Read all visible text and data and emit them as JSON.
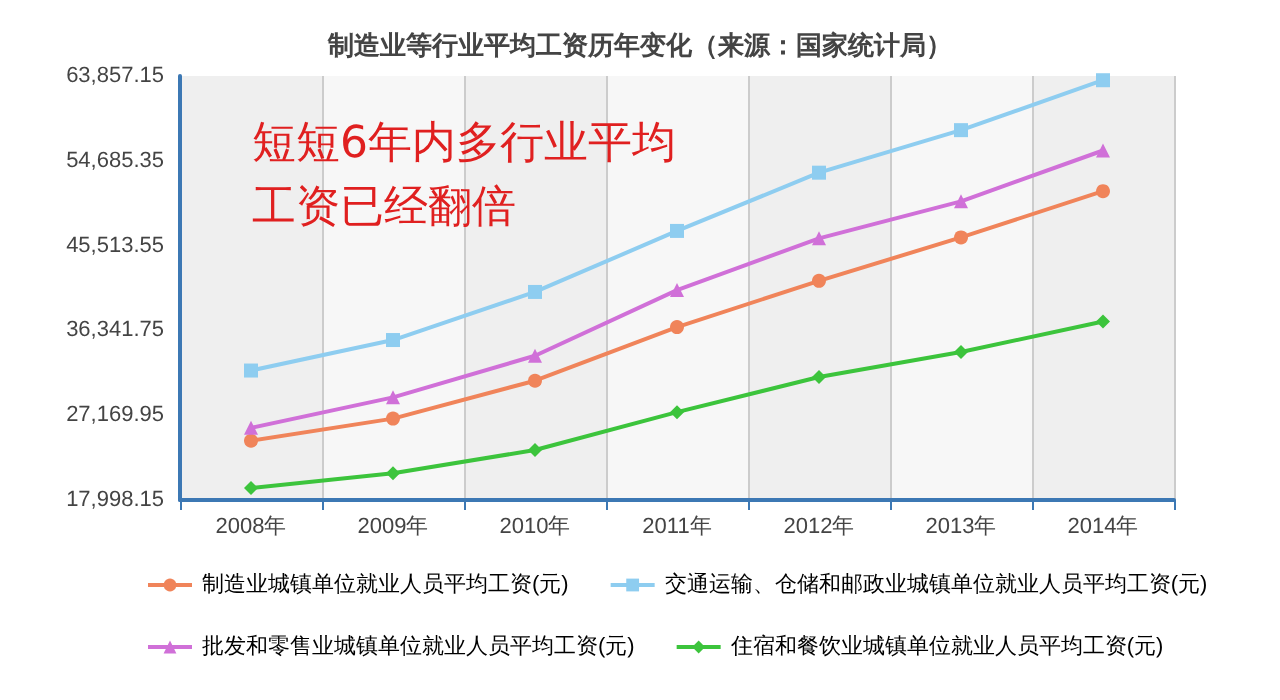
{
  "chart_data": {
    "type": "line",
    "title": "制造业等行业平均工资历年变化（来源：国家统计局）",
    "annotations": [
      "短短6年内多行业平均工资已经翻倍"
    ],
    "categories": [
      "2008年",
      "2009年",
      "2010年",
      "2011年",
      "2012年",
      "2013年",
      "2014年"
    ],
    "series": [
      {
        "name": "制造业城镇单位就业人员平均工资(元)",
        "color": "#f0845a",
        "marker": "circle",
        "values": [
          24400,
          26800,
          30900,
          36700,
          41700,
          46400,
          51400
        ]
      },
      {
        "name": "交通运输、仓储和邮政业城镇单位就业人员平均工资(元)",
        "color": "#8ecdf0",
        "marker": "square",
        "values": [
          32000,
          35300,
          40500,
          47100,
          53400,
          58000,
          63400
        ]
      },
      {
        "name": "批发和零售业城镇单位就业人员平均工资(元)",
        "color": "#d070d8",
        "marker": "triangle",
        "values": [
          25800,
          29100,
          33600,
          40700,
          46300,
          50300,
          55800
        ]
      },
      {
        "name": "住宿和餐饮业城镇单位就业人员平均工资(元)",
        "color": "#3cc43c",
        "marker": "diamond",
        "values": [
          19300,
          20900,
          23400,
          27500,
          31300,
          34000,
          37300
        ]
      }
    ],
    "ylim": [
      17998.15,
      63857.15
    ],
    "yticks": [
      {
        "value": 17998.15,
        "label": "17,998.15"
      },
      {
        "value": 27169.95,
        "label": "27,169.95"
      },
      {
        "value": 36341.75,
        "label": "36,341.75"
      },
      {
        "value": 45513.55,
        "label": "45,513.55"
      },
      {
        "value": 54685.35,
        "label": "54,685.35"
      },
      {
        "value": 63857.15,
        "label": "63,857.15"
      }
    ],
    "grid": true,
    "legend": "bottom"
  }
}
